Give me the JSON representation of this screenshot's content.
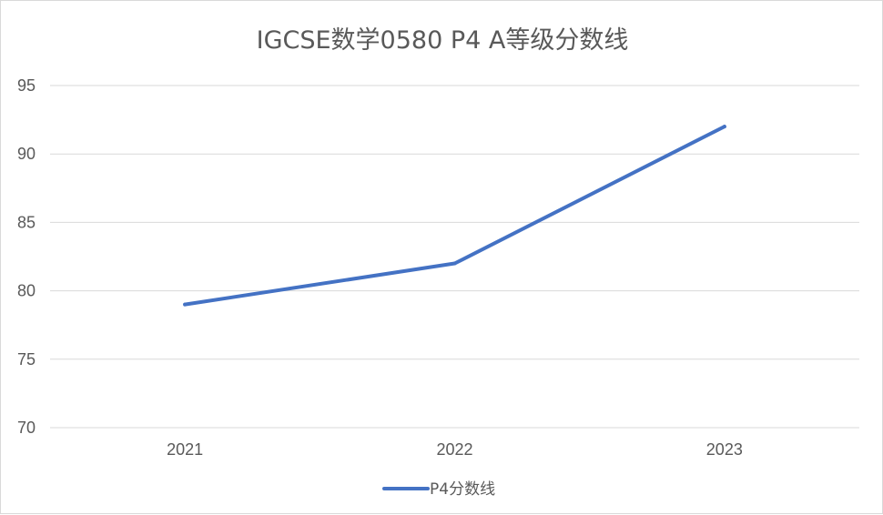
{
  "chart_data": {
    "type": "line",
    "title": "IGCSE数学0580 P4 A等级分数线",
    "xlabel": "",
    "ylabel": "",
    "categories": [
      "2021",
      "2022",
      "2023"
    ],
    "series": [
      {
        "name": "P4分数线",
        "values": [
          79,
          82,
          92
        ],
        "color": "#4472c4"
      }
    ],
    "ylim": [
      70,
      95
    ],
    "yticks": [
      "70",
      "75",
      "80",
      "85",
      "90",
      "95"
    ],
    "grid": true,
    "legend_position": "bottom"
  }
}
